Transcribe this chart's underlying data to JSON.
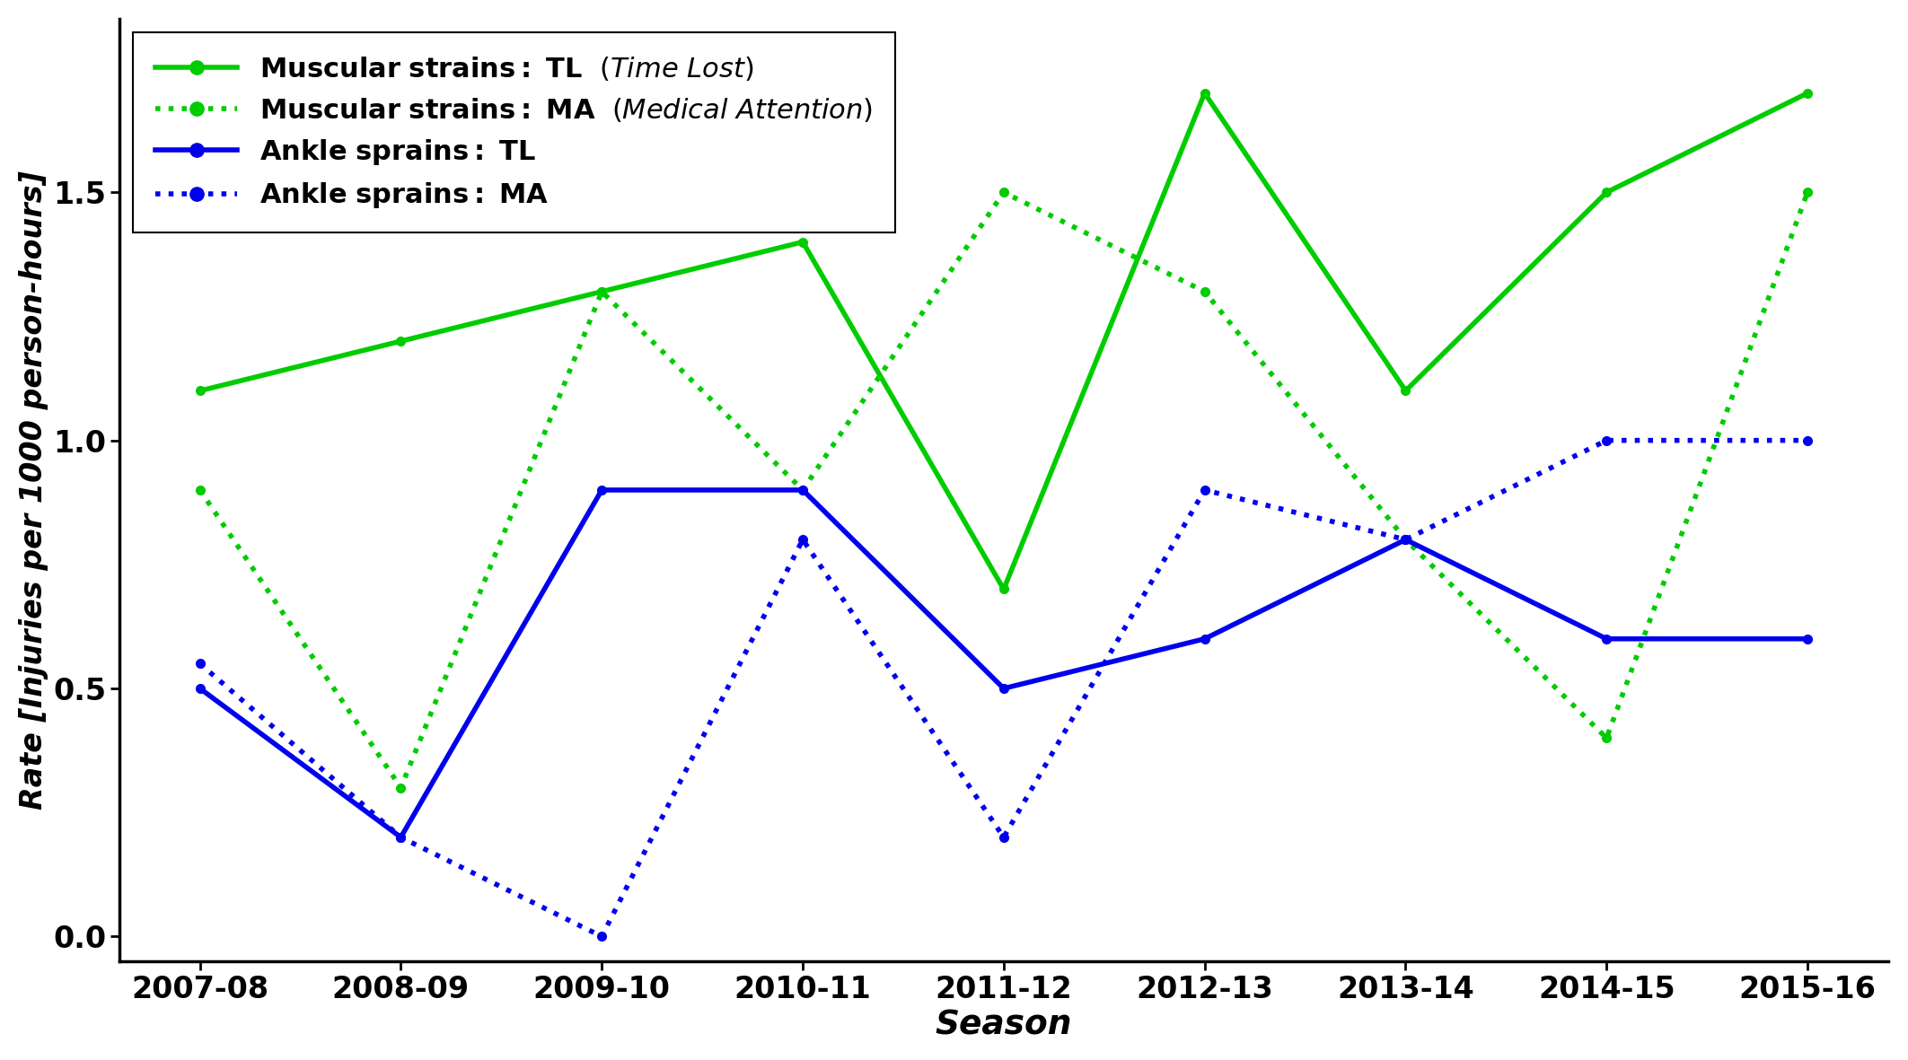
{
  "seasons": [
    "2007-08",
    "2008-09",
    "2009-10",
    "2010-11",
    "2011-12",
    "2012-13",
    "2013-14",
    "2014-15",
    "2015-16"
  ],
  "muscular_strains_TL": [
    1.1,
    1.2,
    1.3,
    1.4,
    0.7,
    1.7,
    1.1,
    1.5,
    1.7
  ],
  "muscular_strains_MA": [
    0.9,
    0.3,
    1.3,
    0.9,
    1.5,
    1.3,
    0.8,
    0.4,
    1.5
  ],
  "ankle_sprains_TL": [
    0.5,
    0.2,
    0.9,
    0.9,
    0.5,
    0.6,
    0.8,
    0.6,
    0.6
  ],
  "ankle_sprains_MA": [
    0.55,
    0.2,
    0.0,
    0.8,
    0.2,
    0.9,
    0.8,
    1.0,
    1.0
  ],
  "color_green": "#00CC00",
  "color_blue": "#0000EE",
  "ylabel": "Rate [Injuries per 1000 person-hours]",
  "xlabel": "Season",
  "ylim": [
    -0.05,
    1.85
  ],
  "yticks": [
    0.0,
    0.5,
    1.0,
    1.5
  ],
  "linewidth": 4.0,
  "markersize": 7,
  "tick_labelsize": 24,
  "axis_labelsize": 27,
  "legend_fontsize": 22
}
